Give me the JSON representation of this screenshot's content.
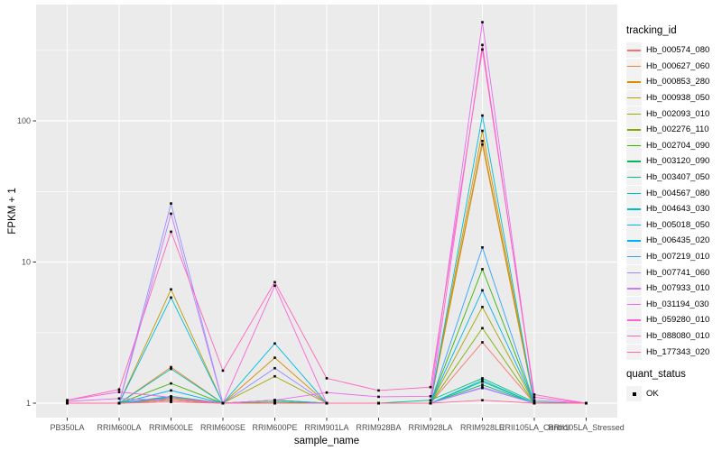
{
  "figure": {
    "background": "#FFFFFF",
    "panel_bg": "#EBEBEB",
    "grid_color": "#FFFFFF",
    "tick_color": "#333333",
    "tick_label_color": "#4D4D4D",
    "point_color": "#000000",
    "legend_key_bg": "#F2F2F2"
  },
  "chart_data": {
    "type": "line",
    "title": "",
    "xlabel": "sample_name",
    "ylabel": "FPKM + 1",
    "y_scale": "log10",
    "y_ticks": [
      1,
      10,
      100
    ],
    "y_minor_ticks": [
      3.16,
      31.6,
      316
    ],
    "ylim": [
      0.79,
      660
    ],
    "grid": "on",
    "legend_position": "right",
    "legend": {
      "color_title": "tracking_id",
      "shape_title": "quant_status",
      "shape_items": [
        {
          "label": "OK"
        }
      ]
    },
    "categories": [
      "PB350LA",
      "RRIM600LA",
      "RRIM600LE",
      "RRIM600SE",
      "RRIM600PE",
      "RRIM901LA",
      "RRIM928BA",
      "RRIM928LA",
      "RRIM928LE",
      "RRII105LA_Control",
      "RRII105LA_Stressed"
    ],
    "series": [
      {
        "name": "Hb_000574_080",
        "color": "#F8766D",
        "values": [
          1.0,
          1.0,
          1.02,
          1.0,
          1.0,
          1.0,
          1.0,
          1.0,
          2.7,
          1.0,
          1.0
        ]
      },
      {
        "name": "Hb_000627_060",
        "color": "#EA8331",
        "values": [
          1.0,
          1.0,
          1.8,
          1.0,
          1.05,
          1.0,
          1.0,
          1.0,
          68,
          1.0,
          1.0
        ]
      },
      {
        "name": "Hb_000853_280",
        "color": "#D89000",
        "values": [
          1.0,
          1.0,
          1.05,
          1.0,
          2.1,
          1.0,
          1.0,
          1.0,
          85,
          1.0,
          1.0
        ]
      },
      {
        "name": "Hb_000938_050",
        "color": "#C09B00",
        "values": [
          1.0,
          1.0,
          6.4,
          1.0,
          1.0,
          1.0,
          1.0,
          1.0,
          72,
          1.0,
          1.0
        ]
      },
      {
        "name": "Hb_002093_010",
        "color": "#A3A500",
        "values": [
          1.0,
          1.0,
          1.08,
          1.0,
          1.55,
          1.0,
          1.0,
          1.0,
          4.8,
          1.0,
          1.0
        ]
      },
      {
        "name": "Hb_002276_110",
        "color": "#7CAE00",
        "values": [
          1.0,
          1.0,
          1.1,
          1.0,
          1.05,
          1.0,
          1.0,
          1.0,
          3.4,
          1.0,
          1.0
        ]
      },
      {
        "name": "Hb_002704_090",
        "color": "#39B600",
        "values": [
          1.0,
          1.0,
          1.38,
          1.0,
          1.02,
          1.0,
          1.0,
          1.0,
          8.9,
          1.0,
          1.0
        ]
      },
      {
        "name": "Hb_003120_090",
        "color": "#00BB4E",
        "values": [
          1.0,
          1.0,
          1.05,
          1.0,
          1.0,
          1.0,
          1.0,
          1.0,
          1.35,
          1.0,
          1.0
        ]
      },
      {
        "name": "Hb_003407_050",
        "color": "#00C087",
        "values": [
          1.0,
          1.0,
          1.12,
          1.0,
          1.0,
          1.0,
          1.0,
          1.05,
          1.5,
          1.02,
          1.0
        ]
      },
      {
        "name": "Hb_004567_080",
        "color": "#00C1AB",
        "values": [
          1.0,
          1.0,
          1.75,
          1.0,
          1.0,
          1.0,
          1.0,
          1.0,
          1.45,
          1.0,
          1.0
        ]
      },
      {
        "name": "Hb_004643_030",
        "color": "#00BFC4",
        "values": [
          1.0,
          1.0,
          1.1,
          1.0,
          1.0,
          1.0,
          1.0,
          1.0,
          1.42,
          1.0,
          1.0
        ]
      },
      {
        "name": "Hb_005018_050",
        "color": "#00BAE0",
        "values": [
          1.0,
          1.0,
          5.6,
          1.0,
          2.65,
          1.0,
          1.0,
          1.0,
          109,
          1.0,
          1.0
        ]
      },
      {
        "name": "Hb_006435_020",
        "color": "#00B0F6",
        "values": [
          1.0,
          1.0,
          1.23,
          1.0,
          1.05,
          1.0,
          1.0,
          1.0,
          6.3,
          1.0,
          1.0
        ]
      },
      {
        "name": "Hb_007219_010",
        "color": "#35A2FF",
        "values": [
          1.0,
          1.0,
          1.1,
          1.0,
          1.0,
          1.0,
          1.0,
          1.0,
          12.7,
          1.0,
          1.0
        ]
      },
      {
        "name": "Hb_007741_060",
        "color": "#9590FF",
        "values": [
          1.0,
          1.0,
          26.0,
          1.0,
          1.77,
          1.0,
          1.0,
          1.0,
          1.28,
          1.0,
          1.0
        ]
      },
      {
        "name": "Hb_007933_010",
        "color": "#C77CFF",
        "values": [
          1.0,
          1.0,
          22.0,
          1.0,
          1.0,
          1.0,
          1.0,
          1.0,
          1.3,
          1.0,
          1.0
        ]
      },
      {
        "name": "Hb_031194_030",
        "color": "#E76BF3",
        "values": [
          1.03,
          1.08,
          1.05,
          1.0,
          1.05,
          1.19,
          1.11,
          1.12,
          500,
          1.05,
          1.0
        ]
      },
      {
        "name": "Hb_059280_010",
        "color": "#FA62DB",
        "values": [
          1.05,
          1.2,
          1.1,
          1.0,
          6.8,
          1.0,
          1.0,
          1.0,
          345,
          1.1,
          1.0
        ]
      },
      {
        "name": "Hb_088080_010",
        "color": "#FF62BC",
        "values": [
          1.05,
          1.25,
          16.4,
          1.7,
          7.2,
          1.5,
          1.23,
          1.3,
          320,
          1.15,
          1.0
        ]
      },
      {
        "name": "Hb_177343_020",
        "color": "#FF6A98",
        "values": [
          1.0,
          1.0,
          1.05,
          1.0,
          1.0,
          1.0,
          1.0,
          1.0,
          1.05,
          1.0,
          1.0
        ]
      }
    ]
  }
}
